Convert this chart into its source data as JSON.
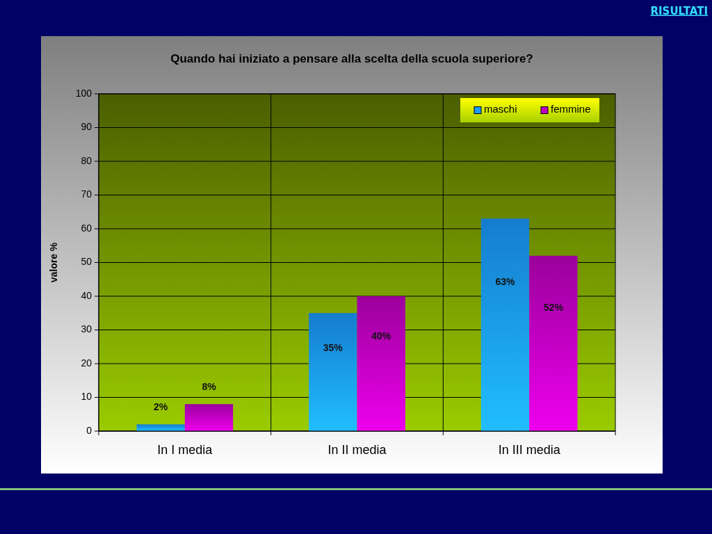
{
  "chart_data": {
    "type": "bar",
    "title": "Quando hai iniziato a pensare alla scelta della scuola superiore?",
    "ylabel": "valore %",
    "categories": [
      "In I media",
      "In II media",
      "In III media"
    ],
    "series": [
      {
        "name": "maschi",
        "color": "#1a99ff",
        "values": [
          2,
          35,
          63
        ],
        "value_labels": [
          "2%",
          "35%",
          "63%"
        ]
      },
      {
        "name": "femmine",
        "color": "#c000c0",
        "values": [
          8,
          40,
          52
        ],
        "value_labels": [
          "8%",
          "40%",
          "52%"
        ]
      }
    ],
    "ylim": [
      0,
      100
    ],
    "yticks": [
      0,
      10,
      20,
      30,
      40,
      50,
      60,
      70,
      80,
      90,
      100
    ],
    "grid": true,
    "legend": "top right",
    "annotations": [
      "RISULTATI"
    ]
  }
}
